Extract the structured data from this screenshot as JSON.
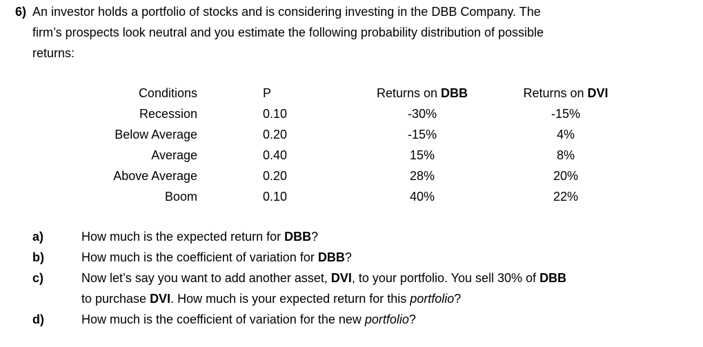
{
  "problem": {
    "number": "6)",
    "intro_lines": [
      "An investor holds a portfolio of stocks and is considering investing in the DBB Company.  The",
      "firm’s prospects look neutral and you estimate the following probability distribution of possible",
      "returns:"
    ]
  },
  "table": {
    "headers": {
      "conditions": "Conditions",
      "p": "P",
      "dbb_prefix": "Returns on ",
      "dbb_bold": "DBB",
      "dvi_prefix": "Returns on ",
      "dvi_bold": "DVI"
    },
    "rows": [
      {
        "condition": "Recession",
        "p": "0.10",
        "dbb": "-30%",
        "dvi": "-15%"
      },
      {
        "condition": "Below Average",
        "p": "0.20",
        "dbb": "-15%",
        "dvi": "4%"
      },
      {
        "condition": "Average",
        "p": "0.40",
        "dbb": "15%",
        "dvi": "8%"
      },
      {
        "condition": "Above Average",
        "p": "0.20",
        "dbb": "28%",
        "dvi": "20%"
      },
      {
        "condition": "Boom",
        "p": "0.10",
        "dbb": "40%",
        "dvi": "22%"
      }
    ]
  },
  "questions": [
    {
      "label": "a)",
      "lines": [
        [
          {
            "t": "How much is the expected return for "
          },
          {
            "t": "DBB",
            "b": true
          },
          {
            "t": "?"
          }
        ]
      ]
    },
    {
      "label": "b)",
      "lines": [
        [
          {
            "t": "How much is the coefficient of variation for "
          },
          {
            "t": "DBB",
            "b": true
          },
          {
            "t": "?"
          }
        ]
      ]
    },
    {
      "label": "c)",
      "lines": [
        [
          {
            "t": "Now let’s say you want to add another asset, "
          },
          {
            "t": "DVI",
            "b": true
          },
          {
            "t": ", to your portfolio.  You sell 30% of "
          },
          {
            "t": "DBB",
            "b": true
          }
        ],
        [
          {
            "t": "to purchase "
          },
          {
            "t": "DVI",
            "b": true
          },
          {
            "t": ".  How much is your expected return for this "
          },
          {
            "t": "portfolio",
            "i": true
          },
          {
            "t": "?"
          }
        ]
      ]
    },
    {
      "label": "d)",
      "lines": [
        [
          {
            "t": "How much is the coefficient of variation for the new "
          },
          {
            "t": "portfolio",
            "i": true
          },
          {
            "t": "?"
          }
        ]
      ]
    }
  ]
}
